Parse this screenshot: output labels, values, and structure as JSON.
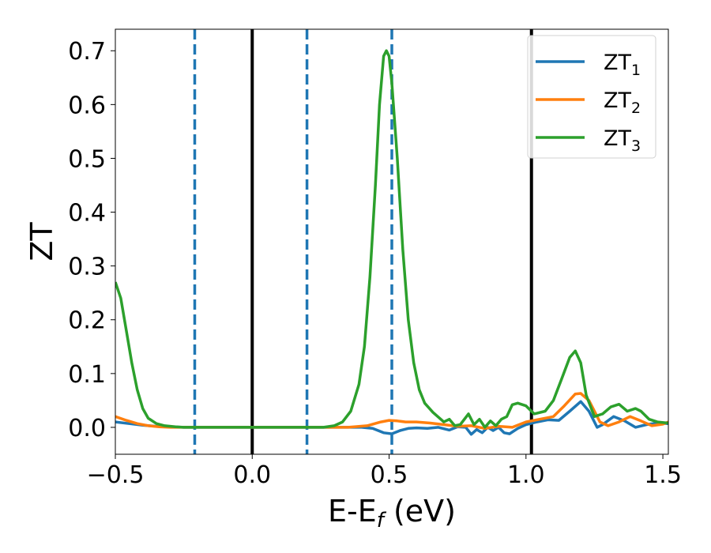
{
  "chart_data": {
    "type": "line",
    "title": "",
    "xlabel": {
      "main": "E-E",
      "sub": "f",
      "unit": " (eV)"
    },
    "ylabel": "ZT",
    "xlim": [
      -0.5,
      1.52
    ],
    "ylim": [
      -0.05,
      0.74
    ],
    "xticks": [
      -0.5,
      0.0,
      0.5,
      1.0,
      1.5
    ],
    "xtick_labels": [
      "−0.5",
      "0.0",
      "0.5",
      "1.0",
      "1.5"
    ],
    "yticks": [
      0.0,
      0.1,
      0.2,
      0.3,
      0.4,
      0.5,
      0.6,
      0.7
    ],
    "ytick_labels": [
      "0.0",
      "0.1",
      "0.2",
      "0.3",
      "0.4",
      "0.5",
      "0.6",
      "0.7"
    ],
    "grid": false,
    "legend_position": "top-right",
    "vertical_lines": [
      {
        "x": -0.21,
        "style": "dashed",
        "color": "#1f77b4"
      },
      {
        "x": 0.0,
        "style": "solid",
        "color": "#000000"
      },
      {
        "x": 0.2,
        "style": "dashed",
        "color": "#1f77b4"
      },
      {
        "x": 0.51,
        "style": "dashed",
        "color": "#1f77b4"
      },
      {
        "x": 1.02,
        "style": "solid",
        "color": "#000000"
      }
    ],
    "series": [
      {
        "name": "ZT",
        "name_sub": "1",
        "color": "#1f77b4",
        "points": [
          [
            -0.5,
            0.01
          ],
          [
            -0.45,
            0.007
          ],
          [
            -0.4,
            0.004
          ],
          [
            -0.35,
            0.002
          ],
          [
            -0.3,
            0.001
          ],
          [
            -0.25,
            0.0
          ],
          [
            -0.1,
            0.0
          ],
          [
            0.0,
            0.0
          ],
          [
            0.2,
            0.0
          ],
          [
            0.4,
            0.0
          ],
          [
            0.44,
            -0.002
          ],
          [
            0.48,
            -0.01
          ],
          [
            0.51,
            -0.012
          ],
          [
            0.54,
            -0.006
          ],
          [
            0.57,
            -0.002
          ],
          [
            0.6,
            -0.001
          ],
          [
            0.64,
            -0.002
          ],
          [
            0.68,
            0.0
          ],
          [
            0.72,
            -0.005
          ],
          [
            0.75,
            0.001
          ],
          [
            0.78,
            0.0
          ],
          [
            0.8,
            -0.013
          ],
          [
            0.82,
            -0.004
          ],
          [
            0.84,
            -0.01
          ],
          [
            0.86,
            0.0
          ],
          [
            0.88,
            -0.006
          ],
          [
            0.9,
            0.0
          ],
          [
            0.92,
            -0.01
          ],
          [
            0.94,
            -0.012
          ],
          [
            0.97,
            -0.002
          ],
          [
            1.0,
            0.005
          ],
          [
            1.04,
            0.01
          ],
          [
            1.08,
            0.014
          ],
          [
            1.12,
            0.013
          ],
          [
            1.16,
            0.03
          ],
          [
            1.2,
            0.048
          ],
          [
            1.23,
            0.03
          ],
          [
            1.26,
            0.0
          ],
          [
            1.28,
            0.005
          ],
          [
            1.32,
            0.02
          ],
          [
            1.36,
            0.012
          ],
          [
            1.4,
            0.0
          ],
          [
            1.44,
            0.005
          ],
          [
            1.48,
            0.008
          ],
          [
            1.52,
            0.007
          ]
        ]
      },
      {
        "name": "ZT",
        "name_sub": "2",
        "color": "#ff7f0e",
        "points": [
          [
            -0.5,
            0.02
          ],
          [
            -0.46,
            0.013
          ],
          [
            -0.42,
            0.007
          ],
          [
            -0.38,
            0.003
          ],
          [
            -0.34,
            0.001
          ],
          [
            -0.3,
            0.0
          ],
          [
            -0.1,
            0.0
          ],
          [
            0.0,
            0.0
          ],
          [
            0.2,
            0.0
          ],
          [
            0.35,
            0.0
          ],
          [
            0.42,
            0.003
          ],
          [
            0.47,
            0.01
          ],
          [
            0.5,
            0.013
          ],
          [
            0.53,
            0.012
          ],
          [
            0.56,
            0.01
          ],
          [
            0.6,
            0.01
          ],
          [
            0.65,
            0.008
          ],
          [
            0.7,
            0.005
          ],
          [
            0.75,
            0.002
          ],
          [
            0.8,
            0.003
          ],
          [
            0.85,
            -0.002
          ],
          [
            0.9,
            0.002
          ],
          [
            0.95,
            0.0
          ],
          [
            1.0,
            0.01
          ],
          [
            1.05,
            0.015
          ],
          [
            1.1,
            0.02
          ],
          [
            1.14,
            0.04
          ],
          [
            1.18,
            0.062
          ],
          [
            1.2,
            0.063
          ],
          [
            1.23,
            0.05
          ],
          [
            1.27,
            0.01
          ],
          [
            1.3,
            0.003
          ],
          [
            1.34,
            0.01
          ],
          [
            1.38,
            0.02
          ],
          [
            1.42,
            0.012
          ],
          [
            1.46,
            0.003
          ],
          [
            1.5,
            0.006
          ],
          [
            1.52,
            0.01
          ]
        ]
      },
      {
        "name": "ZT",
        "name_sub": "3",
        "color": "#2ca02c",
        "points": [
          [
            -0.5,
            0.27
          ],
          [
            -0.48,
            0.24
          ],
          [
            -0.46,
            0.18
          ],
          [
            -0.44,
            0.12
          ],
          [
            -0.42,
            0.07
          ],
          [
            -0.4,
            0.035
          ],
          [
            -0.38,
            0.017
          ],
          [
            -0.35,
            0.007
          ],
          [
            -0.32,
            0.003
          ],
          [
            -0.28,
            0.001
          ],
          [
            -0.25,
            0.0
          ],
          [
            0.0,
            0.0
          ],
          [
            0.2,
            0.0
          ],
          [
            0.26,
            0.0
          ],
          [
            0.3,
            0.003
          ],
          [
            0.33,
            0.01
          ],
          [
            0.36,
            0.03
          ],
          [
            0.39,
            0.08
          ],
          [
            0.41,
            0.15
          ],
          [
            0.43,
            0.28
          ],
          [
            0.45,
            0.45
          ],
          [
            0.465,
            0.6
          ],
          [
            0.48,
            0.69
          ],
          [
            0.49,
            0.7
          ],
          [
            0.5,
            0.69
          ],
          [
            0.51,
            0.64
          ],
          [
            0.53,
            0.5
          ],
          [
            0.55,
            0.33
          ],
          [
            0.57,
            0.2
          ],
          [
            0.59,
            0.12
          ],
          [
            0.61,
            0.07
          ],
          [
            0.63,
            0.045
          ],
          [
            0.66,
            0.028
          ],
          [
            0.7,
            0.01
          ],
          [
            0.72,
            0.015
          ],
          [
            0.74,
            0.003
          ],
          [
            0.76,
            0.005
          ],
          [
            0.79,
            0.025
          ],
          [
            0.81,
            0.005
          ],
          [
            0.83,
            0.015
          ],
          [
            0.85,
            0.0
          ],
          [
            0.87,
            0.012
          ],
          [
            0.89,
            0.003
          ],
          [
            0.91,
            0.015
          ],
          [
            0.93,
            0.02
          ],
          [
            0.95,
            0.042
          ],
          [
            0.97,
            0.045
          ],
          [
            1.0,
            0.04
          ],
          [
            1.03,
            0.025
          ],
          [
            1.07,
            0.03
          ],
          [
            1.1,
            0.05
          ],
          [
            1.13,
            0.09
          ],
          [
            1.16,
            0.13
          ],
          [
            1.18,
            0.142
          ],
          [
            1.2,
            0.12
          ],
          [
            1.22,
            0.06
          ],
          [
            1.25,
            0.02
          ],
          [
            1.28,
            0.025
          ],
          [
            1.31,
            0.038
          ],
          [
            1.34,
            0.043
          ],
          [
            1.37,
            0.03
          ],
          [
            1.4,
            0.035
          ],
          [
            1.42,
            0.03
          ],
          [
            1.45,
            0.015
          ],
          [
            1.48,
            0.01
          ],
          [
            1.52,
            0.008
          ]
        ]
      }
    ]
  }
}
